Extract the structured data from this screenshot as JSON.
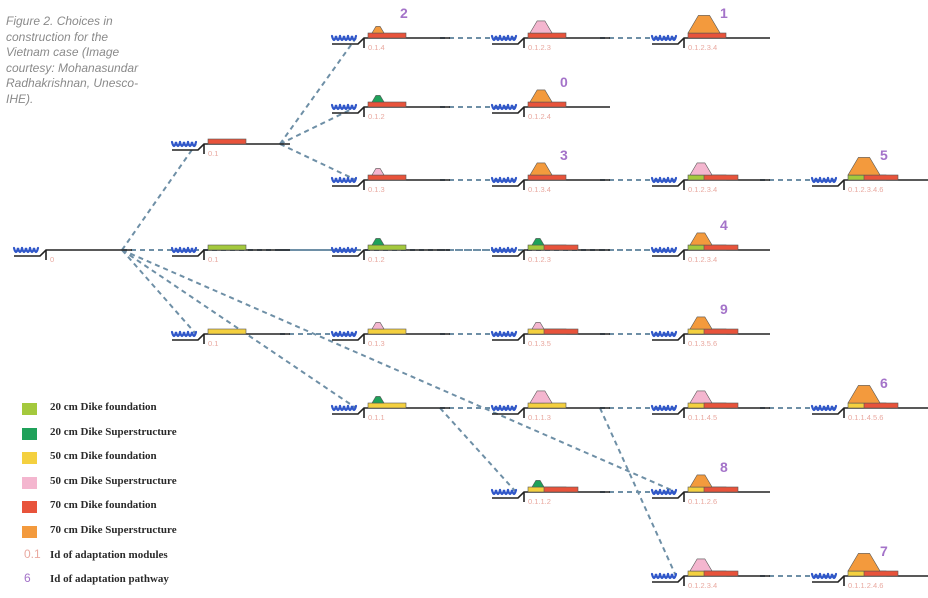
{
  "caption": "Figure 2. Choices in construction for the Vietnam case (Image courtesy: Mohanasundar Radhakrishnan, Unesco-IHE).",
  "colors": {
    "f20": "#a4c93d",
    "s20": "#1fa15a",
    "f50": "#f4d03f",
    "s50": "#f4b6cf",
    "f70": "#e8533b",
    "s70": "#f39a3d",
    "line": "#222222",
    "dash": "#6e8fa6",
    "wave": "#2f56c9",
    "module_id": "#e9a9a0",
    "pathway_id": "#a473c9"
  },
  "legend": [
    {
      "key": "f20",
      "label": "20 cm Dike foundation",
      "swatch": "box"
    },
    {
      "key": "s20",
      "label": "20 cm Dike Superstructure",
      "swatch": "box"
    },
    {
      "key": "f50",
      "label": "50 cm Dike foundation",
      "swatch": "box"
    },
    {
      "key": "s50",
      "label": "50 cm Dike Superstructure",
      "swatch": "box"
    },
    {
      "key": "f70",
      "label": "70 cm Dike foundation",
      "swatch": "box"
    },
    {
      "key": "s70",
      "label": "70 cm Dike Superstructure",
      "swatch": "box"
    },
    {
      "key": "module_id",
      "label": "Id of adaptation modules",
      "swatch": "text",
      "swatch_text": "0.1"
    },
    {
      "key": "pathway_id",
      "label": "Id of adaptation pathway",
      "swatch": "text",
      "swatch_text": "6"
    }
  ],
  "nodes": [
    {
      "id": "root",
      "mid": "0",
      "layers": []
    },
    {
      "id": "n1",
      "mid": "0.1",
      "layers": [
        "f70"
      ]
    },
    {
      "id": "n2",
      "mid": "0.1",
      "layers": [
        "f20"
      ]
    },
    {
      "id": "n3",
      "mid": "0.1",
      "layers": [
        "f50"
      ]
    },
    {
      "id": "a1",
      "mid": "0.1.4",
      "layers": [
        "f70",
        "s70"
      ],
      "pathway": "2"
    },
    {
      "id": "a2",
      "mid": "0.1.2",
      "layers": [
        "f70",
        "s20"
      ]
    },
    {
      "id": "a3",
      "mid": "0.1.3",
      "layers": [
        "f70",
        "s50"
      ]
    },
    {
      "id": "a4",
      "mid": "0.1.2",
      "layers": [
        "f20",
        "s20"
      ]
    },
    {
      "id": "a5",
      "mid": "0.1.3",
      "layers": [
        "f50",
        "s50"
      ]
    },
    {
      "id": "a6",
      "mid": "0.1.1",
      "layers": [
        "f50",
        "s20"
      ]
    },
    {
      "id": "b1",
      "mid": "0.1.2.3",
      "layers": [
        "f70",
        "s20",
        "s50"
      ]
    },
    {
      "id": "b2",
      "mid": "0.1.2.4",
      "layers": [
        "f70",
        "s20",
        "s70"
      ],
      "pathway": "0"
    },
    {
      "id": "b3",
      "mid": "0.1.3.4",
      "layers": [
        "f70",
        "s50",
        "s70"
      ],
      "pathway": "3"
    },
    {
      "id": "b4",
      "mid": "0.1.2.3",
      "layers": [
        "f20",
        "s20",
        "f70"
      ]
    },
    {
      "id": "b5",
      "mid": "0.1.3.5",
      "layers": [
        "f50",
        "s50",
        "f70"
      ]
    },
    {
      "id": "b6",
      "mid": "0.1.1.3",
      "layers": [
        "f50",
        "s20",
        "s50"
      ]
    },
    {
      "id": "b7",
      "mid": "0.1.1.2",
      "layers": [
        "f50",
        "s20",
        "f70"
      ]
    },
    {
      "id": "c1",
      "mid": "0.1.2.3.4",
      "layers": [
        "f70",
        "s20",
        "s50",
        "s70"
      ],
      "pathway": "1"
    },
    {
      "id": "c2",
      "mid": "0.1.2.3.4",
      "layers": [
        "f20",
        "s20",
        "f70",
        "s50"
      ]
    },
    {
      "id": "c3",
      "mid": "0.1.2.3.4",
      "layers": [
        "f20",
        "s20",
        "f70",
        "s70"
      ],
      "pathway": "4"
    },
    {
      "id": "c4",
      "mid": "0.1.3.5.6",
      "layers": [
        "f50",
        "s50",
        "f70",
        "s70"
      ],
      "pathway": "9"
    },
    {
      "id": "c5",
      "mid": "0.1.1.4.5",
      "layers": [
        "f50",
        "s20",
        "s50",
        "f70"
      ]
    },
    {
      "id": "c6",
      "mid": "0.1.1.2.6",
      "layers": [
        "f50",
        "s20",
        "f70",
        "s70"
      ],
      "pathway": "8"
    },
    {
      "id": "c7",
      "mid": "0.1.2.3.4",
      "layers": [
        "f50",
        "s20",
        "s50",
        "f70"
      ]
    },
    {
      "id": "d1",
      "mid": "0.1.2.3.4.6",
      "layers": [
        "f20",
        "s20",
        "f70",
        "s50",
        "s70"
      ],
      "pathway": "5"
    },
    {
      "id": "d2",
      "mid": "0.1.1.4.5.6",
      "layers": [
        "f50",
        "s20",
        "s50",
        "f70",
        "s70"
      ],
      "pathway": "6"
    },
    {
      "id": "d3",
      "mid": "0.1.1.2.4.6",
      "layers": [
        "f50",
        "s20",
        "s50",
        "f70",
        "s70"
      ],
      "pathway": "7"
    }
  ],
  "edges": [
    [
      "root",
      "n1"
    ],
    [
      "root",
      "n2"
    ],
    [
      "root",
      "n3"
    ],
    [
      "root",
      "a6"
    ],
    [
      "root",
      "c3"
    ],
    [
      "root",
      "c6"
    ],
    [
      "n1",
      "a1"
    ],
    [
      "n1",
      "a2"
    ],
    [
      "n1",
      "a3"
    ],
    [
      "n2",
      "a4"
    ],
    [
      "n3",
      "a5"
    ],
    [
      "a1",
      "b1"
    ],
    [
      "a2",
      "b2"
    ],
    [
      "a3",
      "b3"
    ],
    [
      "a4",
      "b4"
    ],
    [
      "a5",
      "b5"
    ],
    [
      "a6",
      "b6"
    ],
    [
      "a6",
      "b7"
    ],
    [
      "b1",
      "c1"
    ],
    [
      "b3",
      "c2"
    ],
    [
      "b4",
      "c3"
    ],
    [
      "b5",
      "c4"
    ],
    [
      "b6",
      "c5"
    ],
    [
      "b7",
      "c6"
    ],
    [
      "b6",
      "c7"
    ],
    [
      "c2",
      "d1"
    ],
    [
      "c5",
      "d2"
    ],
    [
      "c7",
      "d3"
    ]
  ]
}
